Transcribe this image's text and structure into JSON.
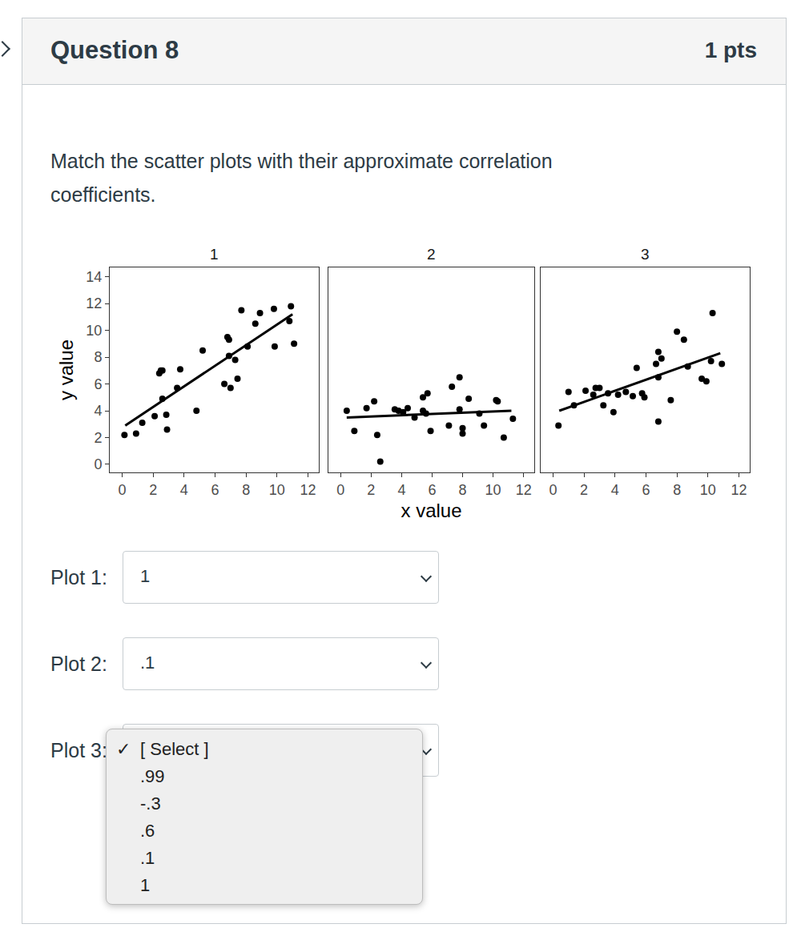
{
  "page": {
    "question_title": "Question 8",
    "points": "1 pts",
    "prompt": "Match the scatter plots with their approximate correlation coefficients.",
    "answers": [
      {
        "label": "Plot 1:",
        "selected": "1"
      },
      {
        "label": "Plot 2:",
        "selected": ".1"
      },
      {
        "label": "Plot 3:"
      }
    ],
    "dropdown": {
      "check": "✓",
      "options": [
        "[ Select ]",
        ".99",
        "-.3",
        ".6",
        ".1",
        "1"
      ],
      "checked": "[ Select ]"
    }
  },
  "chart_data": [
    {
      "type": "scatter",
      "title": "1",
      "y_label": "y value",
      "color": "#000000",
      "grid": false,
      "xlim": [
        -0.8,
        12.7
      ],
      "ylim": [
        -0.6,
        14.7
      ],
      "xticks": [
        0,
        2,
        4,
        6,
        8,
        10,
        12
      ],
      "yticks": [
        0,
        2,
        4,
        6,
        8,
        10,
        12,
        14
      ],
      "series": [
        {
          "type": "scatter",
          "x": [
            0.15,
            0.9,
            1.3,
            2.1,
            2.4,
            2.5,
            2.6,
            2.6,
            2.85,
            2.9,
            3.55,
            3.75,
            4.8,
            5.2,
            6.6,
            6.8,
            6.9,
            6.9,
            7.0,
            7.3,
            7.45,
            7.7,
            8.1,
            8.6,
            8.9,
            9.8,
            9.85,
            10.8,
            10.9,
            11.1
          ],
          "values": [
            2.2,
            2.3,
            3.1,
            3.6,
            6.8,
            7.0,
            7.0,
            4.9,
            3.7,
            2.6,
            5.7,
            7.1,
            4.0,
            8.5,
            6.0,
            9.5,
            9.3,
            8.1,
            5.7,
            7.8,
            6.4,
            11.5,
            8.8,
            10.5,
            11.3,
            11.6,
            8.8,
            10.7,
            11.8,
            9.0
          ]
        },
        {
          "type": "line",
          "x": [
            0.2,
            11.0
          ],
          "values": [
            2.9,
            11.2
          ]
        }
      ]
    },
    {
      "type": "scatter",
      "title": "2",
      "x_label": "x value",
      "color": "#000000",
      "grid": false,
      "tick_labels": "x",
      "xlim": [
        -0.8,
        12.7
      ],
      "ylim": [
        -0.6,
        14.7
      ],
      "xticks": [
        0,
        2,
        4,
        6,
        8,
        10,
        12
      ],
      "yticks": [
        0,
        2,
        4,
        6,
        8,
        10,
        12,
        14
      ],
      "series": [
        {
          "type": "scatter",
          "x": [
            0.4,
            0.9,
            1.7,
            2.2,
            2.4,
            2.6,
            3.55,
            3.8,
            4.1,
            4.4,
            4.85,
            5.4,
            5.7,
            5.4,
            5.6,
            5.9,
            7.1,
            7.3,
            7.8,
            7.8,
            8.0,
            8.0,
            8.4,
            9.4,
            9.1,
            10.2,
            10.3,
            10.7,
            11.3
          ],
          "values": [
            4.0,
            2.5,
            4.2,
            4.7,
            2.2,
            0.2,
            4.1,
            4.0,
            3.9,
            4.2,
            3.5,
            5.0,
            5.3,
            4.0,
            3.8,
            2.5,
            2.9,
            5.8,
            6.5,
            4.1,
            2.7,
            2.3,
            4.9,
            2.9,
            3.8,
            4.8,
            4.7,
            2.0,
            3.4
          ]
        },
        {
          "type": "line",
          "x": [
            0.4,
            11.2
          ],
          "values": [
            3.5,
            4.0
          ]
        }
      ]
    },
    {
      "type": "scatter",
      "title": "3",
      "color": "#000000",
      "grid": false,
      "tick_labels": "x",
      "xlim": [
        -0.8,
        12.7
      ],
      "ylim": [
        -0.6,
        14.7
      ],
      "xticks": [
        0,
        2,
        4,
        6,
        8,
        10,
        12
      ],
      "yticks": [
        0,
        2,
        4,
        6,
        8,
        10,
        12,
        14
      ],
      "series": [
        {
          "type": "scatter",
          "x": [
            0.35,
            1.0,
            1.35,
            2.1,
            2.6,
            2.75,
            3.0,
            3.25,
            3.55,
            3.9,
            4.2,
            4.7,
            5.15,
            5.4,
            5.75,
            5.9,
            6.65,
            6.8,
            7.0,
            6.8,
            6.8,
            7.6,
            8.0,
            8.45,
            8.7,
            9.6,
            9.9,
            10.3,
            10.2,
            10.9
          ],
          "values": [
            2.9,
            5.4,
            4.4,
            5.5,
            5.2,
            5.7,
            5.7,
            4.4,
            5.3,
            3.9,
            5.2,
            5.4,
            5.1,
            7.2,
            5.3,
            5.0,
            7.5,
            8.4,
            7.9,
            6.5,
            3.2,
            4.8,
            9.9,
            9.3,
            7.3,
            6.4,
            6.2,
            11.3,
            7.7,
            7.5
          ]
        },
        {
          "type": "line",
          "x": [
            0.4,
            10.8
          ],
          "values": [
            4.0,
            8.3
          ]
        }
      ]
    }
  ]
}
